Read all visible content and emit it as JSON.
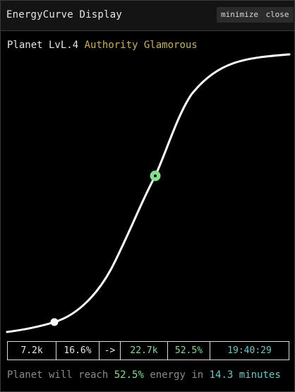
{
  "window": {
    "title": "EnergyCurve Display",
    "minimize_label": "minimize",
    "close_label": "close"
  },
  "planet": {
    "level_text": "Planet LvL.4",
    "authority_text": "Authority Glamorous"
  },
  "stats": {
    "current_value": "7.2k",
    "current_percent": "16.6%",
    "arrow": "->",
    "target_value": "22.7k",
    "target_percent": "52.5%",
    "eta_time": "19:40:29"
  },
  "footer": {
    "prefix": "Planet will reach",
    "percent": "52.5%",
    "middle": "energy in",
    "duration": "14.3 minutes"
  },
  "colors": {
    "green": "#7fe08d",
    "teal": "#67c7c7",
    "gold": "#c9b256"
  }
}
